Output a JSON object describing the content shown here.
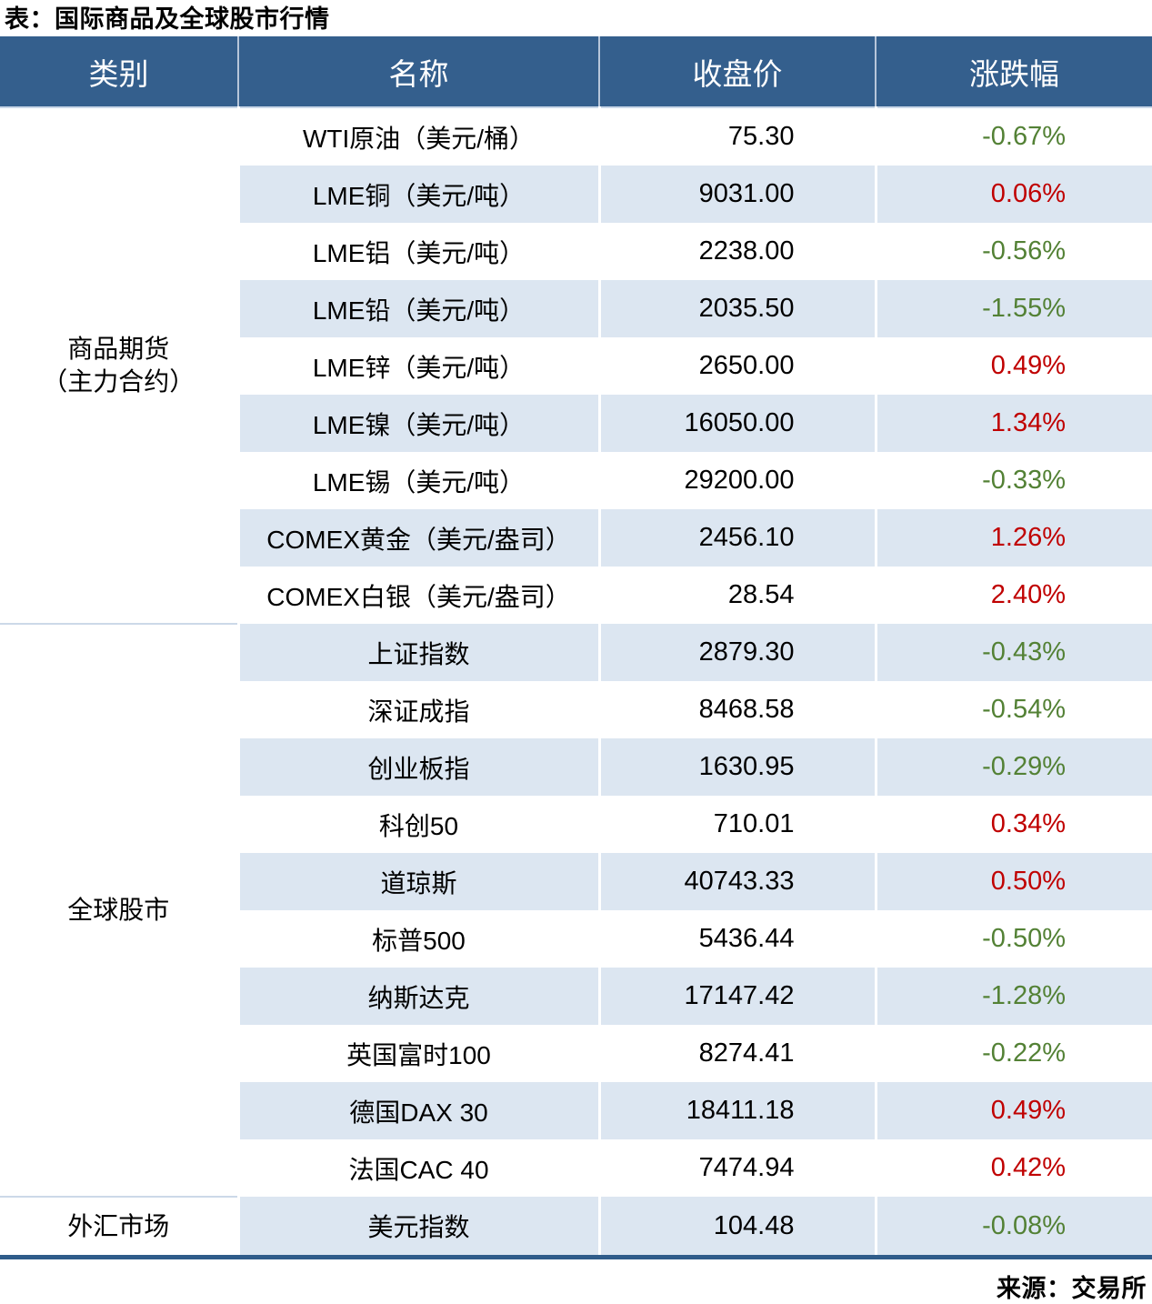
{
  "title": "表：国际商品及全球股市行情",
  "source": "来源：交易所",
  "colors": {
    "header_bg": "#345F8D",
    "alt_row_bg": "#DCE6F1",
    "positive_change": "#C00000",
    "negative_change": "#538135",
    "bottom_bar": "#2F5C8A"
  },
  "table": {
    "headers": [
      "类别",
      "名称",
      "收盘价",
      "涨跌幅"
    ],
    "sections": [
      {
        "category_lines": [
          "商品期货",
          "（主力合约）"
        ],
        "rows": [
          {
            "name": "WTI原油（美元/桶）",
            "close": "75.30",
            "change": "-0.67%"
          },
          {
            "name": "LME铜（美元/吨）",
            "close": "9031.00",
            "change": "0.06%"
          },
          {
            "name": "LME铝（美元/吨）",
            "close": "2238.00",
            "change": "-0.56%"
          },
          {
            "name": "LME铅（美元/吨）",
            "close": "2035.50",
            "change": "-1.55%"
          },
          {
            "name": "LME锌（美元/吨）",
            "close": "2650.00",
            "change": "0.49%"
          },
          {
            "name": "LME镍（美元/吨）",
            "close": "16050.00",
            "change": "1.34%"
          },
          {
            "name": "LME锡（美元/吨）",
            "close": "29200.00",
            "change": "-0.33%"
          },
          {
            "name": "COMEX黄金（美元/盎司）",
            "close": "2456.10",
            "change": "1.26%"
          },
          {
            "name": "COMEX白银（美元/盎司）",
            "close": "28.54",
            "change": "2.40%"
          }
        ]
      },
      {
        "category_lines": [
          "全球股市"
        ],
        "rows": [
          {
            "name": "上证指数",
            "close": "2879.30",
            "change": "-0.43%"
          },
          {
            "name": "深证成指",
            "close": "8468.58",
            "change": "-0.54%"
          },
          {
            "name": "创业板指",
            "close": "1630.95",
            "change": "-0.29%"
          },
          {
            "name": "科创50",
            "close": "710.01",
            "change": "0.34%"
          },
          {
            "name": "道琼斯",
            "close": "40743.33",
            "change": "0.50%"
          },
          {
            "name": "标普500",
            "close": "5436.44",
            "change": "-0.50%"
          },
          {
            "name": "纳斯达克",
            "close": "17147.42",
            "change": "-1.28%"
          },
          {
            "name": "英国富时100",
            "close": "8274.41",
            "change": "-0.22%"
          },
          {
            "name": "德国DAX 30",
            "close": "18411.18",
            "change": "0.49%"
          },
          {
            "name": "法国CAC 40",
            "close": "7474.94",
            "change": "0.42%"
          }
        ]
      },
      {
        "category_lines": [
          "外汇市场"
        ],
        "rows": [
          {
            "name": "美元指数",
            "close": "104.48",
            "change": "-0.08%"
          }
        ]
      }
    ]
  }
}
